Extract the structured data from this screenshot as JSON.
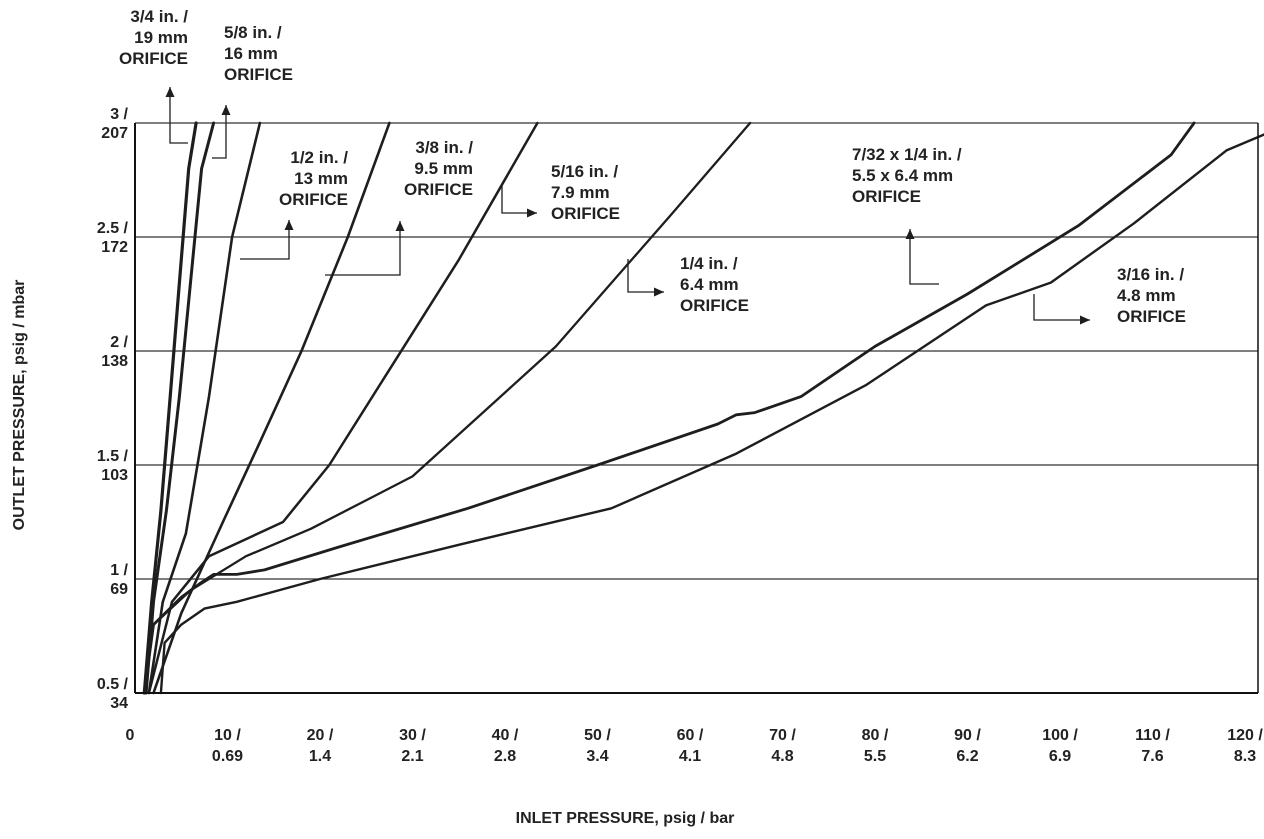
{
  "chart_data": {
    "type": "line",
    "xlabel": "INLET PRESSURE, psig / bar",
    "ylabel": "OUTLET PRESSURE, psig / mbar",
    "xlim": [
      0,
      125
    ],
    "ylim": [
      0.5,
      3
    ],
    "grid": {
      "horizontal": true,
      "vertical": false
    },
    "x_ticks": [
      {
        "value": 0,
        "label": [
          "0"
        ]
      },
      {
        "value": 10,
        "label": [
          "10 /",
          "0.69"
        ]
      },
      {
        "value": 20,
        "label": [
          "20 /",
          "1.4"
        ]
      },
      {
        "value": 30,
        "label": [
          "30 /",
          "2.1"
        ]
      },
      {
        "value": 40,
        "label": [
          "40 /",
          "2.8"
        ]
      },
      {
        "value": 50,
        "label": [
          "50 /",
          "3.4"
        ]
      },
      {
        "value": 60,
        "label": [
          "60 /",
          "4.1"
        ]
      },
      {
        "value": 70,
        "label": [
          "70 /",
          "4.8"
        ]
      },
      {
        "value": 80,
        "label": [
          "80 /",
          "5.5"
        ]
      },
      {
        "value": 90,
        "label": [
          "90 /",
          "6.2"
        ]
      },
      {
        "value": 100,
        "label": [
          "100 /",
          "6.9"
        ]
      },
      {
        "value": 110,
        "label": [
          "110 /",
          "7.6"
        ]
      },
      {
        "value": 120,
        "label": [
          "120 /",
          "8.3"
        ]
      }
    ],
    "y_ticks": [
      {
        "value": 0.5,
        "label": [
          "0.5 /",
          "34"
        ]
      },
      {
        "value": 1,
        "label": [
          "1 /",
          "69"
        ]
      },
      {
        "value": 1.5,
        "label": [
          "1.5 /",
          "103"
        ]
      },
      {
        "value": 2,
        "label": [
          "2 /",
          "138"
        ]
      },
      {
        "value": 2.5,
        "label": [
          "2.5 /",
          "172"
        ]
      },
      {
        "value": 3,
        "label": [
          "3 /",
          "207"
        ]
      }
    ],
    "series": [
      {
        "name": [
          "3/4 in. /",
          "19 mm",
          "ORIFICE"
        ],
        "stroke": 3.2,
        "x": [
          1.0,
          1.8,
          2.8,
          3.8,
          4.8,
          5.8,
          6.6
        ],
        "y": [
          0.5,
          0.9,
          1.3,
          1.8,
          2.3,
          2.8,
          3.0
        ]
      },
      {
        "name": [
          "5/8 in. /",
          "16 mm",
          "ORIFICE"
        ],
        "stroke": 3.0,
        "x": [
          1.2,
          2.0,
          3.4,
          4.8,
          6.0,
          7.2,
          8.5
        ],
        "y": [
          0.5,
          0.9,
          1.3,
          1.8,
          2.3,
          2.8,
          3.0
        ]
      },
      {
        "name": [
          "1/2 in. /",
          "13 mm",
          "ORIFICE"
        ],
        "stroke": 2.6,
        "x": [
          1.5,
          3.0,
          5.5,
          8.0,
          10.5,
          13.5
        ],
        "y": [
          0.5,
          0.9,
          1.2,
          1.8,
          2.5,
          3.0
        ]
      },
      {
        "name": [
          "3/8 in. /",
          "9.5 mm",
          "ORIFICE"
        ],
        "stroke": 2.6,
        "x": [
          2.0,
          5.0,
          9.5,
          13.5,
          18.0,
          23.0,
          27.5
        ],
        "y": [
          0.5,
          0.85,
          1.25,
          1.6,
          2.0,
          2.5,
          3.0
        ]
      },
      {
        "name": [
          "5/16 in. /",
          "7.9 mm",
          "ORIFICE"
        ],
        "stroke": 2.5,
        "x": [
          1.5,
          4.0,
          8.0,
          16.0,
          21.0,
          28.0,
          35.0,
          43.5
        ],
        "y": [
          0.5,
          0.9,
          1.1,
          1.25,
          1.5,
          1.95,
          2.4,
          3.0
        ]
      },
      {
        "name": [
          "1/4 in. /",
          "6.4 mm",
          "ORIFICE"
        ],
        "stroke": 2.3,
        "x": [
          1.0,
          2.0,
          6.0,
          12.0,
          19.0,
          30.0,
          45.5,
          58.0,
          66.5
        ],
        "y": [
          0.5,
          0.8,
          0.95,
          1.1,
          1.22,
          1.45,
          2.02,
          2.6,
          3.0
        ]
      },
      {
        "name": [
          "7/32 x 1/4 in. /",
          "5.5 x 6.4 mm",
          "ORIFICE"
        ],
        "stroke": 2.8,
        "x": [
          1.0,
          2.0,
          5.0,
          7.0,
          8.5,
          11.0,
          14.0,
          22.0,
          36.0,
          50.0,
          63.0,
          65.0,
          67.0,
          72.0,
          80.0,
          90.0,
          102.0,
          112.0,
          114.5
        ],
        "y": [
          0.5,
          0.8,
          0.92,
          0.98,
          1.02,
          1.02,
          1.04,
          1.14,
          1.31,
          1.5,
          1.68,
          1.72,
          1.73,
          1.8,
          2.02,
          2.25,
          2.55,
          2.86,
          3.0
        ]
      },
      {
        "name": [
          "3/16 in. /",
          "4.8 mm",
          "ORIFICE"
        ],
        "stroke": 2.4,
        "x": [
          2.8,
          3.2,
          5.0,
          7.5,
          11.0,
          20.0,
          35.0,
          51.5,
          65.0,
          79.0,
          92.0,
          99.0,
          108.0,
          118.0,
          125.0
        ],
        "y": [
          0.5,
          0.72,
          0.8,
          0.87,
          0.9,
          1.0,
          1.15,
          1.31,
          1.55,
          1.85,
          2.2,
          2.3,
          2.56,
          2.88,
          3.0
        ]
      }
    ]
  }
}
